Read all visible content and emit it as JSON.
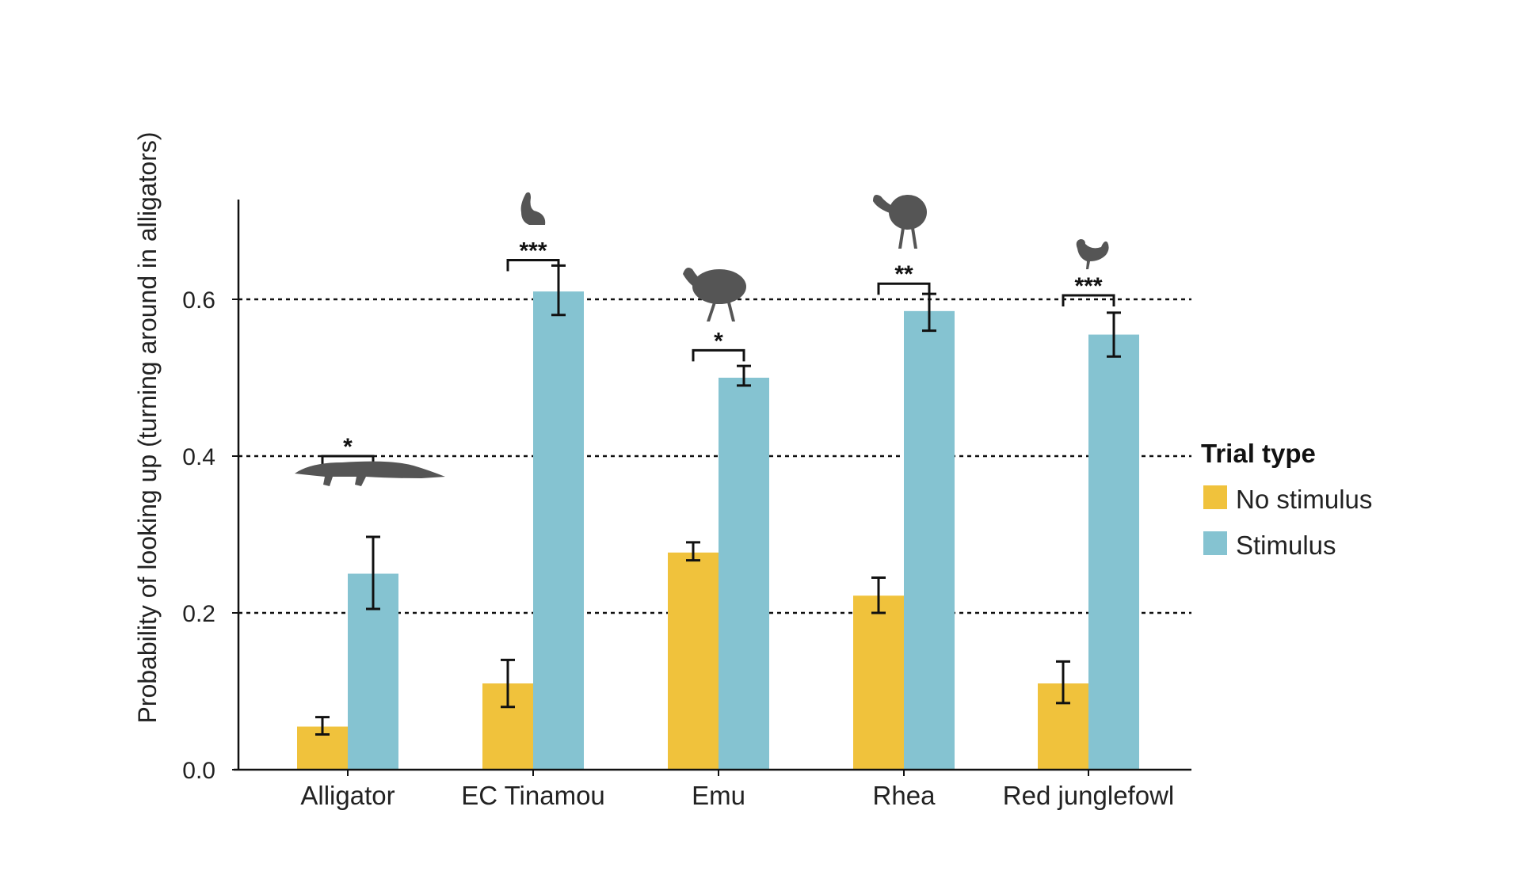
{
  "chart_data": {
    "type": "bar",
    "title": "",
    "xlabel": "",
    "ylabel": "Probability of looking up (turning around in alligators)",
    "ylim": [
      0,
      0.72
    ],
    "yticks": [
      "0.0",
      "0.2",
      "0.4",
      "0.6"
    ],
    "ytick_values": [
      0,
      0.2,
      0.4,
      0.6
    ],
    "gridlines": [
      0.2,
      0.4,
      0.6
    ],
    "grid_style": "dotted horizontal",
    "categories": [
      "Alligator",
      "EC Tinamou",
      "Emu",
      "Rhea",
      "Red junglefowl"
    ],
    "series": [
      {
        "name": "No stimulus",
        "color": "#F0C23C",
        "values": [
          0.055,
          0.11,
          0.277,
          0.222,
          0.11
        ],
        "err_low": [
          0.045,
          0.08,
          0.267,
          0.2,
          0.085
        ],
        "err_high": [
          0.067,
          0.14,
          0.29,
          0.245,
          0.138
        ]
      },
      {
        "name": "Stimulus",
        "color": "#85C3D1",
        "values": [
          0.25,
          0.61,
          0.5,
          0.585,
          0.555
        ],
        "err_low": [
          0.205,
          0.58,
          0.49,
          0.56,
          0.527
        ],
        "err_high": [
          0.297,
          0.643,
          0.515,
          0.607,
          0.583
        ]
      }
    ],
    "significance": [
      "*",
      "***",
      "*",
      "**",
      "***"
    ],
    "bracket_levels": [
      0.4,
      0.65,
      0.535,
      0.62,
      0.605
    ],
    "legend": {
      "title": "Trial type",
      "placement": "right"
    }
  }
}
